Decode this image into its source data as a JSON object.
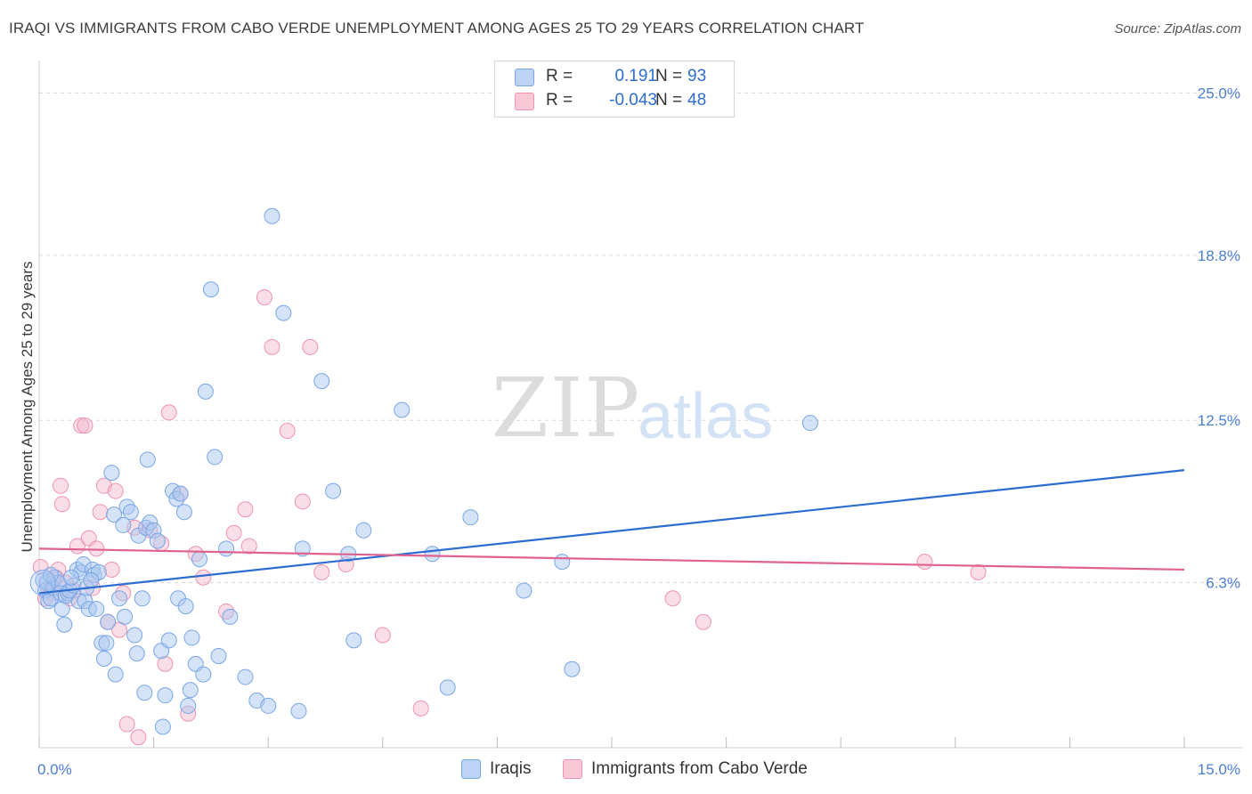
{
  "title": "IRAQI VS IMMIGRANTS FROM CABO VERDE UNEMPLOYMENT AMONG AGES 25 TO 29 YEARS CORRELATION CHART",
  "source": "Source: ZipAtlas.com",
  "watermark": {
    "zip": "ZIP",
    "atlas": "atlas"
  },
  "legend": {
    "rows": [
      {
        "r_label": "R =",
        "r_value": "0.191",
        "n_label": "N =",
        "n_value": "93"
      },
      {
        "r_label": "R =",
        "r_value": "-0.043",
        "n_label": "N =",
        "n_value": "48"
      }
    ]
  },
  "bottom_legend": {
    "series1": "Iraqis",
    "series2": "Immigrants from Cabo Verde"
  },
  "colors": {
    "blue_fill": "#a9c7f0",
    "blue_stroke": "#7aa6e6",
    "blue_line": "#2d6cd0",
    "pink_fill": "#f5b5c9",
    "pink_stroke": "#ee93b0",
    "pink_line": "#e0628e",
    "grid": "#d9d9d9",
    "axis_text": "#4a7fd0"
  },
  "chart_data": {
    "type": "scatter",
    "title": "IRAQI VS IMMIGRANTS FROM CABO VERDE UNEMPLOYMENT AMONG AGES 25 TO 29 YEARS CORRELATION CHART",
    "xlabel": "",
    "ylabel": "Unemployment Among Ages 25 to 29 years",
    "xlim": [
      0,
      15
    ],
    "ylim": [
      0,
      25.9
    ],
    "x_tick_labels": [
      {
        "value": 0,
        "label": "0.0%"
      },
      {
        "value": 15,
        "label": "15.0%"
      }
    ],
    "x_tick_marks": [
      0,
      1.5,
      3,
      4.5,
      6,
      7.5,
      9,
      10.5,
      12,
      13.5,
      15
    ],
    "y_ticks": [
      {
        "value": 6.3,
        "label": "6.3%"
      },
      {
        "value": 12.5,
        "label": "12.5%"
      },
      {
        "value": 18.8,
        "label": "18.8%"
      },
      {
        "value": 25.0,
        "label": "25.0%"
      }
    ],
    "series": [
      {
        "name": "Iraqis",
        "R": 0.191,
        "N": 93,
        "trend": {
          "x": [
            0,
            15
          ],
          "y": [
            5.9,
            10.6
          ]
        },
        "points": [
          [
            0.05,
            6.4
          ],
          [
            0.08,
            6.0
          ],
          [
            0.1,
            6.3
          ],
          [
            0.12,
            5.6
          ],
          [
            0.15,
            5.7
          ],
          [
            0.18,
            6.1
          ],
          [
            0.2,
            6.5
          ],
          [
            0.25,
            6.3
          ],
          [
            0.28,
            5.9
          ],
          [
            0.3,
            5.3
          ],
          [
            0.33,
            4.7
          ],
          [
            0.35,
            5.8
          ],
          [
            0.38,
            5.9
          ],
          [
            0.4,
            6.0
          ],
          [
            0.45,
            6.2
          ],
          [
            0.5,
            6.8
          ],
          [
            0.52,
            5.6
          ],
          [
            0.55,
            6.7
          ],
          [
            0.58,
            7.0
          ],
          [
            0.6,
            5.6
          ],
          [
            0.62,
            6.1
          ],
          [
            0.65,
            5.3
          ],
          [
            0.7,
            6.8
          ],
          [
            0.72,
            6.6
          ],
          [
            0.75,
            5.3
          ],
          [
            0.78,
            6.7
          ],
          [
            0.82,
            4.0
          ],
          [
            0.85,
            3.4
          ],
          [
            0.88,
            4.0
          ],
          [
            0.9,
            4.8
          ],
          [
            0.95,
            10.5
          ],
          [
            0.98,
            8.9
          ],
          [
            1.0,
            2.8
          ],
          [
            1.05,
            5.7
          ],
          [
            1.1,
            8.5
          ],
          [
            1.12,
            5.0
          ],
          [
            1.15,
            9.2
          ],
          [
            1.2,
            9.0
          ],
          [
            1.25,
            4.3
          ],
          [
            1.28,
            3.6
          ],
          [
            1.3,
            8.1
          ],
          [
            1.35,
            5.7
          ],
          [
            1.38,
            2.1
          ],
          [
            1.4,
            8.4
          ],
          [
            1.42,
            11.0
          ],
          [
            1.45,
            8.6
          ],
          [
            1.5,
            8.3
          ],
          [
            1.55,
            7.9
          ],
          [
            1.6,
            3.7
          ],
          [
            1.62,
            0.8
          ],
          [
            1.65,
            2.0
          ],
          [
            1.7,
            4.1
          ],
          [
            1.75,
            9.8
          ],
          [
            1.8,
            9.5
          ],
          [
            1.82,
            5.7
          ],
          [
            1.85,
            9.7
          ],
          [
            1.9,
            9.0
          ],
          [
            1.92,
            5.4
          ],
          [
            1.95,
            1.6
          ],
          [
            1.98,
            2.2
          ],
          [
            2.0,
            4.2
          ],
          [
            2.05,
            3.2
          ],
          [
            2.1,
            7.2
          ],
          [
            2.15,
            2.8
          ],
          [
            2.18,
            13.6
          ],
          [
            2.25,
            17.5
          ],
          [
            2.3,
            11.1
          ],
          [
            2.35,
            3.5
          ],
          [
            2.45,
            7.6
          ],
          [
            2.5,
            5.0
          ],
          [
            2.7,
            2.7
          ],
          [
            2.85,
            1.8
          ],
          [
            3.0,
            1.6
          ],
          [
            3.05,
            20.3
          ],
          [
            3.2,
            16.6
          ],
          [
            3.4,
            1.4
          ],
          [
            3.45,
            7.6
          ],
          [
            3.7,
            14.0
          ],
          [
            3.85,
            9.8
          ],
          [
            4.05,
            7.4
          ],
          [
            4.12,
            4.1
          ],
          [
            4.25,
            8.3
          ],
          [
            4.75,
            12.9
          ],
          [
            5.15,
            7.4
          ],
          [
            5.35,
            2.3
          ],
          [
            5.65,
            8.8
          ],
          [
            6.35,
            6.0
          ],
          [
            6.85,
            7.1
          ],
          [
            6.98,
            3.0
          ],
          [
            10.1,
            12.4
          ],
          [
            0.15,
            6.6
          ],
          [
            0.42,
            6.5
          ],
          [
            0.68,
            6.4
          ]
        ]
      },
      {
        "name": "Immigrants from Cabo Verde",
        "R": -0.043,
        "N": 48,
        "trend": {
          "x": [
            0,
            15
          ],
          "y": [
            7.6,
            6.8
          ]
        },
        "points": [
          [
            0.02,
            6.9
          ],
          [
            0.08,
            5.7
          ],
          [
            0.12,
            6.1
          ],
          [
            0.18,
            5.9
          ],
          [
            0.22,
            6.5
          ],
          [
            0.25,
            6.8
          ],
          [
            0.28,
            10.0
          ],
          [
            0.3,
            9.3
          ],
          [
            0.35,
            6.3
          ],
          [
            0.4,
            5.7
          ],
          [
            0.45,
            6.0
          ],
          [
            0.5,
            7.7
          ],
          [
            0.55,
            12.3
          ],
          [
            0.6,
            12.3
          ],
          [
            0.65,
            8.0
          ],
          [
            0.7,
            6.1
          ],
          [
            0.75,
            7.6
          ],
          [
            0.8,
            9.0
          ],
          [
            0.85,
            10.0
          ],
          [
            0.9,
            4.8
          ],
          [
            0.95,
            6.8
          ],
          [
            1.0,
            9.8
          ],
          [
            1.05,
            4.5
          ],
          [
            1.1,
            5.9
          ],
          [
            1.15,
            0.9
          ],
          [
            1.25,
            8.4
          ],
          [
            1.3,
            0.4
          ],
          [
            1.45,
            8.3
          ],
          [
            1.6,
            7.8
          ],
          [
            1.65,
            3.2
          ],
          [
            1.7,
            12.8
          ],
          [
            1.85,
            9.7
          ],
          [
            1.95,
            1.3
          ],
          [
            2.05,
            7.4
          ],
          [
            2.15,
            6.5
          ],
          [
            2.45,
            5.2
          ],
          [
            2.55,
            8.2
          ],
          [
            2.7,
            9.1
          ],
          [
            2.95,
            17.2
          ],
          [
            3.05,
            15.3
          ],
          [
            3.25,
            12.1
          ],
          [
            3.45,
            9.4
          ],
          [
            3.55,
            15.3
          ],
          [
            3.7,
            6.7
          ],
          [
            4.5,
            4.3
          ],
          [
            5.0,
            1.5
          ],
          [
            8.3,
            5.7
          ],
          [
            8.7,
            4.8
          ]
        ]
      }
    ],
    "extra_pink_points": [
      [
        2.75,
        7.7
      ],
      [
        4.02,
        7.0
      ],
      [
        11.6,
        7.1
      ],
      [
        12.3,
        6.7
      ]
    ]
  }
}
